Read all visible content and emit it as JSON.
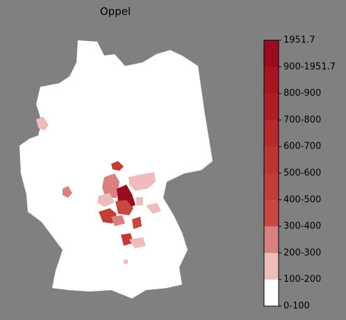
{
  "title": "Oppel",
  "colorbar": {
    "labels": [
      "1951.7",
      "900-1951.7",
      "800-900",
      "700-800",
      "600-700",
      "500-600",
      "400-500",
      "300-400",
      "200-300",
      "100-200",
      "0-100"
    ],
    "band_colors": [
      "#9b0c1e",
      "#a8141f",
      "#b11d25",
      "#b8292b",
      "#bd3432",
      "#c23c38",
      "#c8473f",
      "#d98080",
      "#eebcbc",
      "#ffffff"
    ]
  }
}
